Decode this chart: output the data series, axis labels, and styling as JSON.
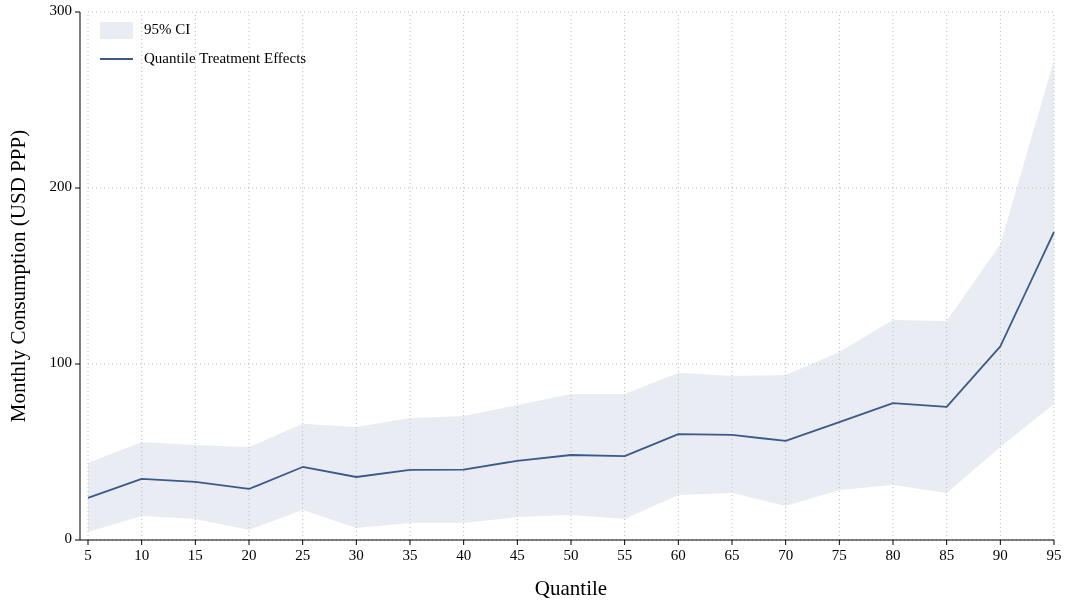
{
  "chart_data": {
    "type": "line",
    "xlabel": "Quantile",
    "ylabel": "Monthly Consumption (USD PPP)",
    "x": [
      5,
      10,
      15,
      20,
      25,
      30,
      35,
      40,
      45,
      50,
      55,
      60,
      65,
      70,
      75,
      80,
      85,
      90,
      95
    ],
    "xlim": [
      5,
      95
    ],
    "xticks": [
      5,
      10,
      15,
      20,
      25,
      30,
      35,
      40,
      45,
      50,
      55,
      60,
      65,
      70,
      75,
      80,
      85,
      90,
      95
    ],
    "ylim": [
      0,
      300
    ],
    "yticks": [
      0,
      100,
      200,
      300
    ],
    "grid": true,
    "legend": "top left",
    "annotations": [
      "95% CI"
    ],
    "series": [
      {
        "name": "Quantile Treatment Effects",
        "color": "#3b5a8a",
        "values": [
          23.9,
          34.7,
          33,
          29,
          41.5,
          35.8,
          39.8,
          40,
          45,
          48.3,
          47.7,
          60.2,
          59.7,
          56.3,
          67,
          77.8,
          75.6,
          110,
          175
        ],
        "upper": [
          43.7,
          55.7,
          54,
          52.8,
          66,
          64.2,
          69.3,
          70.5,
          76.7,
          83,
          83,
          95,
          93.2,
          93.8,
          106.8,
          125,
          124.4,
          168,
          272.7
        ],
        "lower": [
          4.5,
          13.6,
          12,
          5.7,
          17,
          6.8,
          9.7,
          9.7,
          13,
          14.2,
          12,
          25.6,
          26.7,
          19.3,
          28.4,
          31.3,
          26.7,
          52.8,
          77.3
        ]
      }
    ]
  }
}
